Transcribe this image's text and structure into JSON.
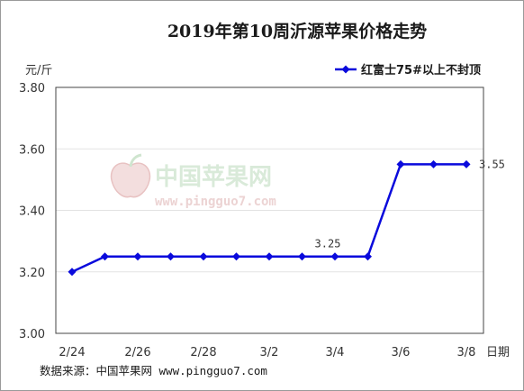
{
  "chart_data": {
    "type": "line",
    "title": "2019年第10周沂源苹果价格走势",
    "ylabel": "元/斤",
    "xlabel": "日期",
    "ylim": [
      3.0,
      3.8
    ],
    "yticks": [
      "3.00",
      "3.20",
      "3.40",
      "3.60",
      "3.80"
    ],
    "grid": true,
    "legend_position": "top-right",
    "x": [
      "2/24",
      "2/25",
      "2/26",
      "2/27",
      "2/28",
      "3/1",
      "3/2",
      "3/3",
      "3/4",
      "3/5",
      "3/6",
      "3/7",
      "3/8"
    ],
    "x_tick_labels": [
      "2/24",
      "",
      "2/26",
      "",
      "2/28",
      "",
      "3/2",
      "",
      "3/4",
      "",
      "3/6",
      "",
      "3/8"
    ],
    "series": [
      {
        "name": "红富士75#以上不封顶",
        "color": "#0a0adc",
        "values": [
          3.2,
          3.25,
          3.25,
          3.25,
          3.25,
          3.25,
          3.25,
          3.25,
          3.25,
          3.25,
          3.55,
          3.55,
          3.55
        ]
      }
    ],
    "annotations": [
      {
        "x": "3/4",
        "text": "3.25"
      },
      {
        "x": "3/8",
        "text": "3.55"
      }
    ]
  },
  "watermark": {
    "cn": "中国苹果网",
    "url": "www.pingguo7.com"
  },
  "source": "数据来源：中国苹果网 www.pingguo7.com"
}
